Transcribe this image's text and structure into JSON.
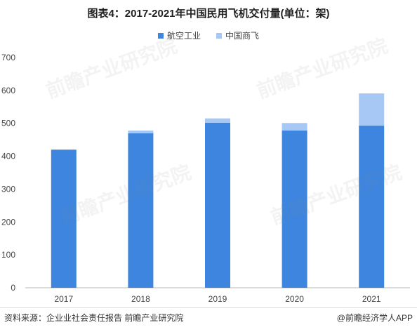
{
  "chart_data": {
    "type": "bar",
    "stacked": true,
    "title": "图表4：2017-2021年中国民用飞机交付量(单位：架)",
    "categories": [
      "2017",
      "2018",
      "2019",
      "2020",
      "2021"
    ],
    "series": [
      {
        "name": "航空工业",
        "values": [
          420,
          470,
          502,
          478,
          493
        ],
        "color": "#3d85de"
      },
      {
        "name": "中国商飞",
        "values": [
          0,
          8,
          13,
          23,
          98
        ],
        "color": "#a7c8f4"
      }
    ],
    "yticks": [
      0,
      100,
      200,
      300,
      400,
      500,
      600,
      700
    ],
    "ylim": [
      0,
      700
    ],
    "grid": false,
    "legend_position": "top-center"
  },
  "footer": {
    "source": "资料来源：企业业社会责任报告 前瞻产业研究院",
    "brand": "@前瞻经济学人APP"
  },
  "watermark": {
    "text": "前瞻产业研究院"
  }
}
